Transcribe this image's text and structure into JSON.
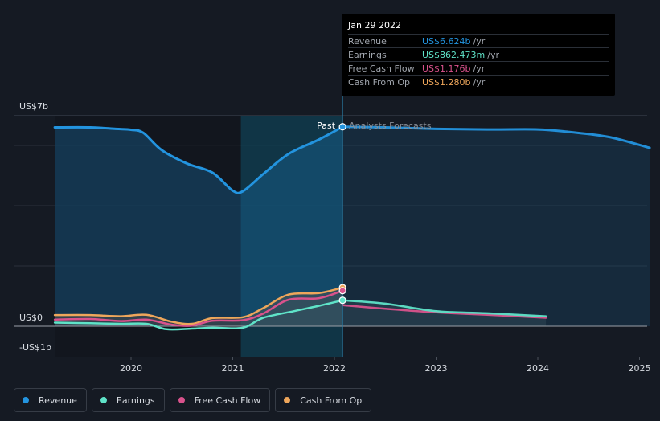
{
  "tooltip": {
    "date": "Jan 29 2022",
    "rows": [
      {
        "label": "Revenue",
        "value": "US$6.624b",
        "unit": "/yr",
        "color": "#2394df"
      },
      {
        "label": "Earnings",
        "value": "US$862.473m",
        "unit": "/yr",
        "color": "#5fe3c8"
      },
      {
        "label": "Free Cash Flow",
        "value": "US$1.176b",
        "unit": "/yr",
        "color": "#d9528c"
      },
      {
        "label": "Cash From Op",
        "value": "US$1.280b",
        "unit": "/yr",
        "color": "#eea65b"
      }
    ]
  },
  "legend": [
    {
      "label": "Revenue",
      "color": "#2394df"
    },
    {
      "label": "Earnings",
      "color": "#5fe3c8"
    },
    {
      "label": "Free Cash Flow",
      "color": "#d9528c"
    },
    {
      "label": "Cash From Op",
      "color": "#eea65b"
    }
  ],
  "colors": {
    "background": "#151a23",
    "revenue": "#2394df",
    "earnings": "#5fe3c8",
    "fcf": "#d9528c",
    "cfo": "#eea65b",
    "highlight": "#0f3f53"
  },
  "chart_data": {
    "type": "line",
    "title": "",
    "xlabel": "",
    "ylabel": "",
    "ylim": [
      -1,
      7
    ],
    "xlim": [
      2019.0,
      2025.1
    ],
    "y_ticks": [
      {
        "value": 7,
        "label": "US$7b"
      },
      {
        "value": 0,
        "label": "US$0"
      },
      {
        "value": -1,
        "label": "-US$1b"
      }
    ],
    "x_ticks": [
      {
        "value": 2020,
        "label": "2020"
      },
      {
        "value": 2021,
        "label": "2021"
      },
      {
        "value": 2022,
        "label": "2022"
      },
      {
        "value": 2023,
        "label": "2023"
      },
      {
        "value": 2024,
        "label": "2024"
      },
      {
        "value": 2025,
        "label": "2025"
      }
    ],
    "divider": {
      "x": 2022.08,
      "past_label": "Past",
      "forecast_label": "Analysts Forecasts"
    },
    "highlight_range": [
      2021.08,
      2022.08
    ],
    "series": [
      {
        "name": "Revenue",
        "key": "revenue",
        "past": [
          [
            2019.25,
            6.6
          ],
          [
            2019.6,
            6.6
          ],
          [
            2019.85,
            6.55
          ],
          [
            2020.0,
            6.52
          ],
          [
            2020.12,
            6.42
          ],
          [
            2020.3,
            5.85
          ],
          [
            2020.55,
            5.4
          ],
          [
            2020.8,
            5.1
          ],
          [
            2021.0,
            4.5
          ],
          [
            2021.1,
            4.48
          ],
          [
            2021.3,
            5.05
          ],
          [
            2021.55,
            5.72
          ],
          [
            2021.85,
            6.2
          ],
          [
            2022.08,
            6.62
          ]
        ],
        "forecast": [
          [
            2022.08,
            6.62
          ],
          [
            2022.5,
            6.6
          ],
          [
            2023.0,
            6.55
          ],
          [
            2023.5,
            6.53
          ],
          [
            2024.0,
            6.53
          ],
          [
            2024.3,
            6.45
          ],
          [
            2024.7,
            6.28
          ],
          [
            2025.1,
            5.92
          ]
        ]
      },
      {
        "name": "Earnings",
        "key": "earnings",
        "past": [
          [
            2019.25,
            0.12
          ],
          [
            2019.6,
            0.1
          ],
          [
            2019.9,
            0.08
          ],
          [
            2020.15,
            0.08
          ],
          [
            2020.35,
            -0.1
          ],
          [
            2020.6,
            -0.08
          ],
          [
            2020.8,
            -0.05
          ],
          [
            2021.1,
            -0.05
          ],
          [
            2021.3,
            0.28
          ],
          [
            2021.6,
            0.5
          ],
          [
            2021.85,
            0.68
          ],
          [
            2022.08,
            0.86
          ]
        ],
        "forecast": [
          [
            2022.08,
            0.86
          ],
          [
            2022.5,
            0.75
          ],
          [
            2023.0,
            0.5
          ],
          [
            2023.5,
            0.43
          ],
          [
            2024.08,
            0.33
          ]
        ]
      },
      {
        "name": "Free Cash Flow",
        "key": "fcf",
        "past": [
          [
            2019.25,
            0.22
          ],
          [
            2019.6,
            0.24
          ],
          [
            2019.9,
            0.17
          ],
          [
            2020.15,
            0.22
          ],
          [
            2020.4,
            0.05
          ],
          [
            2020.6,
            0.02
          ],
          [
            2020.8,
            0.18
          ],
          [
            2021.1,
            0.2
          ],
          [
            2021.3,
            0.42
          ],
          [
            2021.55,
            0.88
          ],
          [
            2021.85,
            0.93
          ],
          [
            2022.08,
            1.18
          ]
        ],
        "forecast": [
          [
            2022.08,
            0.7
          ],
          [
            2022.5,
            0.58
          ],
          [
            2023.0,
            0.46
          ],
          [
            2023.5,
            0.38
          ],
          [
            2024.08,
            0.28
          ]
        ]
      },
      {
        "name": "Cash From Op",
        "key": "cfo",
        "past": [
          [
            2019.25,
            0.37
          ],
          [
            2019.6,
            0.37
          ],
          [
            2019.9,
            0.33
          ],
          [
            2020.15,
            0.38
          ],
          [
            2020.4,
            0.15
          ],
          [
            2020.6,
            0.08
          ],
          [
            2020.8,
            0.27
          ],
          [
            2021.1,
            0.3
          ],
          [
            2021.3,
            0.6
          ],
          [
            2021.55,
            1.05
          ],
          [
            2021.85,
            1.1
          ],
          [
            2022.08,
            1.28
          ]
        ]
      }
    ]
  }
}
